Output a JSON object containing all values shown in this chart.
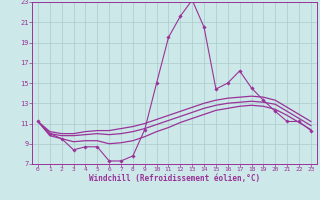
{
  "background_color": "#cce8e8",
  "grid_color": "#aacccc",
  "line_color": "#993399",
  "xlim": [
    -0.5,
    23.5
  ],
  "ylim": [
    7,
    23
  ],
  "xticks": [
    0,
    1,
    2,
    3,
    4,
    5,
    6,
    7,
    8,
    9,
    10,
    11,
    12,
    13,
    14,
    15,
    16,
    17,
    18,
    19,
    20,
    21,
    22,
    23
  ],
  "yticks": [
    7,
    9,
    11,
    13,
    15,
    17,
    19,
    21,
    23
  ],
  "xlabel": "Windchill (Refroidissement éolien,°C)",
  "line_zigzag_x": [
    0,
    1,
    2,
    3,
    4,
    5,
    6,
    7,
    8,
    9,
    10,
    11,
    12,
    13,
    14,
    15,
    16,
    17,
    18,
    19,
    20,
    21,
    22,
    23
  ],
  "line_zigzag_y": [
    11.2,
    10.0,
    9.5,
    8.4,
    8.7,
    8.7,
    7.3,
    7.3,
    7.8,
    10.4,
    15.0,
    19.5,
    21.6,
    23.2,
    20.5,
    14.4,
    15.0,
    16.2,
    14.5,
    13.3,
    12.2,
    11.2,
    11.2,
    10.3
  ],
  "line_upper_x": [
    0,
    1,
    2,
    3,
    4,
    5,
    6,
    7,
    8,
    9,
    10,
    11,
    12,
    13,
    14,
    15,
    16,
    17,
    18,
    19,
    20,
    21,
    22,
    23
  ],
  "line_upper_y": [
    11.2,
    10.2,
    10.0,
    10.0,
    10.2,
    10.3,
    10.3,
    10.5,
    10.7,
    11.0,
    11.4,
    11.8,
    12.2,
    12.6,
    13.0,
    13.3,
    13.5,
    13.6,
    13.7,
    13.6,
    13.3,
    12.6,
    11.9,
    11.2
  ],
  "line_mid_x": [
    0,
    1,
    2,
    3,
    4,
    5,
    6,
    7,
    8,
    9,
    10,
    11,
    12,
    13,
    14,
    15,
    16,
    17,
    18,
    19,
    20,
    21,
    22,
    23
  ],
  "line_mid_y": [
    11.2,
    10.0,
    9.8,
    9.8,
    9.9,
    10.0,
    9.9,
    10.0,
    10.2,
    10.5,
    10.9,
    11.3,
    11.7,
    12.1,
    12.5,
    12.8,
    13.0,
    13.1,
    13.2,
    13.1,
    12.9,
    12.2,
    11.5,
    10.8
  ],
  "line_lower_x": [
    0,
    1,
    2,
    3,
    4,
    5,
    6,
    7,
    8,
    9,
    10,
    11,
    12,
    13,
    14,
    15,
    16,
    17,
    18,
    19,
    20,
    21,
    22,
    23
  ],
  "line_lower_y": [
    11.2,
    9.8,
    9.5,
    9.2,
    9.3,
    9.3,
    9.0,
    9.1,
    9.3,
    9.7,
    10.2,
    10.6,
    11.1,
    11.5,
    11.9,
    12.3,
    12.5,
    12.7,
    12.8,
    12.7,
    12.4,
    11.8,
    11.1,
    10.4
  ]
}
